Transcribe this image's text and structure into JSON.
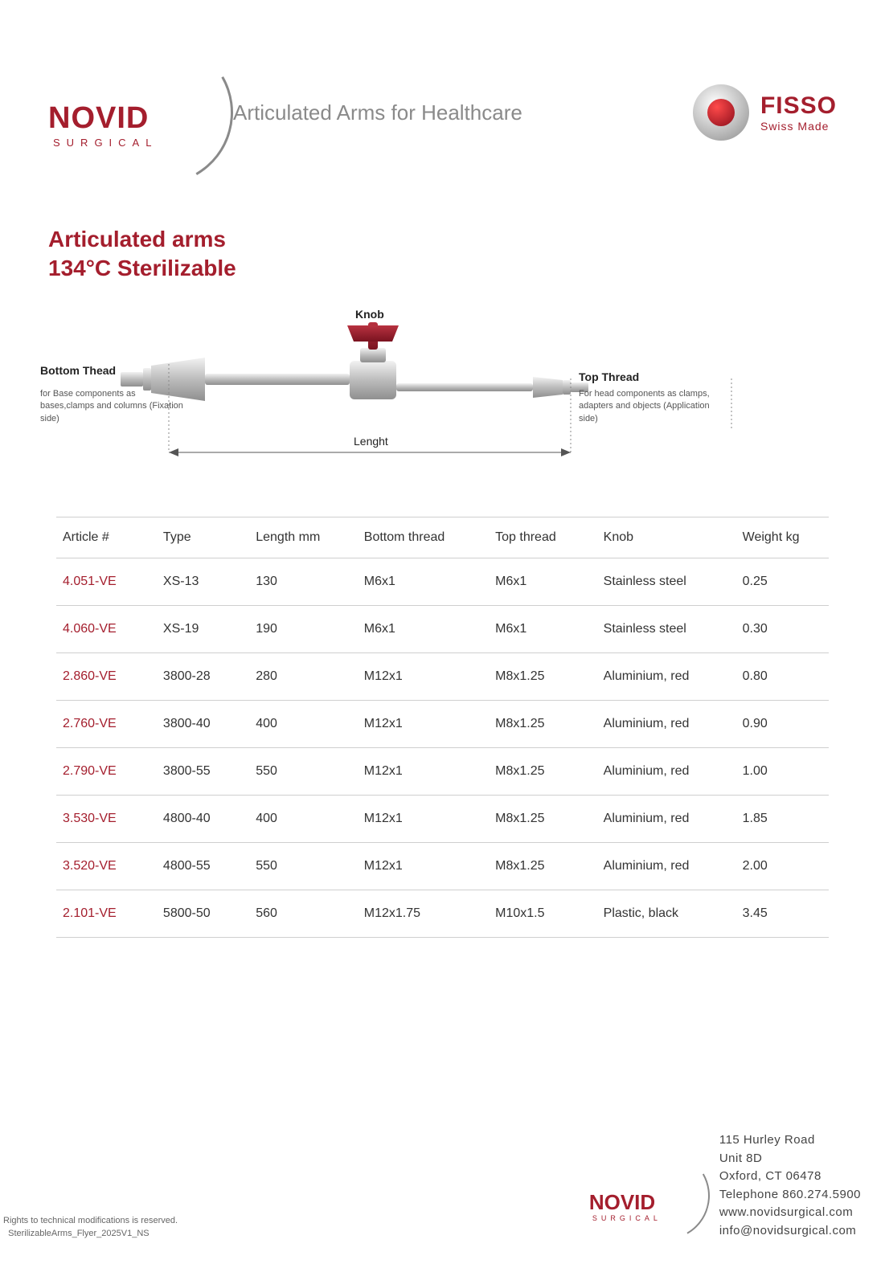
{
  "colors": {
    "brand_red": "#a41e2d",
    "brand_grey": "#8a8a8a",
    "text": "#333333",
    "rule": "#cfcfcf",
    "knob_red_light": "#b83240",
    "knob_red_dark": "#7a1320",
    "metal_light": "#e6e6e6",
    "metal_mid": "#bcbcbc",
    "metal_dark": "#8f8f8f"
  },
  "header": {
    "novid_name": "NOVID",
    "novid_sub": "SURGICAL",
    "tagline": "Articulated Arms for Healthcare",
    "fisso_name": "FISSO",
    "fisso_sub": "Swiss Made"
  },
  "title": {
    "line1": "Articulated arms",
    "line2": "134°C Sterilizable"
  },
  "diagram": {
    "knob_label": "Knob",
    "bottom_label": "Bottom Thead",
    "bottom_note": "for Base components as bases,clamps and columns (Fixation side)",
    "top_label": "Top Thread",
    "top_note": "For head components as clamps, adapters and objects (Application side)",
    "length_label": "Lenght"
  },
  "table": {
    "columns": [
      "Article #",
      "Type",
      "Length mm",
      "Bottom thread",
      "Top thread",
      "Knob",
      "Weight kg"
    ],
    "col_widths_pct": [
      13,
      12,
      14,
      17,
      14,
      18,
      12
    ],
    "rows": [
      [
        "4.051-VE",
        "XS-13",
        "130",
        "M6x1",
        "M6x1",
        "Stainless steel",
        "0.25"
      ],
      [
        "4.060-VE",
        "XS-19",
        "190",
        "M6x1",
        "M6x1",
        "Stainless steel",
        "0.30"
      ],
      [
        "2.860-VE",
        "3800-28",
        "280",
        "M12x1",
        "M8x1.25",
        "Aluminium, red",
        "0.80"
      ],
      [
        "2.760-VE",
        "3800-40",
        "400",
        "M12x1",
        "M8x1.25",
        "Aluminium, red",
        "0.90"
      ],
      [
        "2.790-VE",
        "3800-55",
        "550",
        "M12x1",
        "M8x1.25",
        "Aluminium, red",
        "1.00"
      ],
      [
        "3.530-VE",
        "4800-40",
        "400",
        "M12x1",
        "M8x1.25",
        "Aluminium, red",
        "1.85"
      ],
      [
        "3.520-VE",
        "4800-55",
        "550",
        "M12x1",
        "M8x1.25",
        "Aluminium, red",
        "2.00"
      ],
      [
        "2.101-VE",
        "5800-50",
        "560",
        "M12x1.75",
        "M10x1.5",
        "Plastic, black",
        "3.45"
      ]
    ]
  },
  "footer": {
    "rights_line1": "Rights to technical modifications is reserved.",
    "rights_line2": "SterilizableArms_Flyer_2025V1_NS",
    "contact": {
      "line1": "115 Hurley Road",
      "line2": "Unit 8D",
      "line3": "Oxford, CT 06478",
      "line4": "Telephone 860.274.5900",
      "line5": "www.novidsurgical.com",
      "line6": "info@novidsurgical.com"
    }
  }
}
